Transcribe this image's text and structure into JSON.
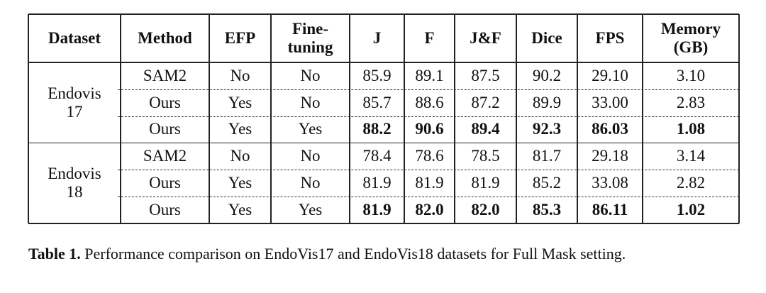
{
  "table": {
    "header": [
      [
        "Dataset"
      ],
      [
        "Method"
      ],
      [
        "EFP"
      ],
      [
        "Fine-",
        "tuning"
      ],
      [
        "J"
      ],
      [
        "F"
      ],
      [
        "J&F"
      ],
      [
        "Dice"
      ],
      [
        "FPS"
      ],
      [
        "Memory",
        "(GB)"
      ]
    ],
    "groups": [
      {
        "dataset": [
          "Endovis",
          "17"
        ],
        "best_row": 2,
        "rows": [
          [
            "SAM2",
            "No",
            "No",
            "85.9",
            "89.1",
            "87.5",
            "90.2",
            "29.10",
            "3.10"
          ],
          [
            "Ours",
            "Yes",
            "No",
            "85.7",
            "88.6",
            "87.2",
            "89.9",
            "33.00",
            "2.83"
          ],
          [
            "Ours",
            "Yes",
            "Yes",
            "88.2",
            "90.6",
            "89.4",
            "92.3",
            "86.03",
            "1.08"
          ]
        ]
      },
      {
        "dataset": [
          "Endovis",
          "18"
        ],
        "best_row": 2,
        "rows": [
          [
            "SAM2",
            "No",
            "No",
            "78.4",
            "78.6",
            "78.5",
            "81.7",
            "29.18",
            "3.14"
          ],
          [
            "Ours",
            "Yes",
            "No",
            "81.9",
            "81.9",
            "81.9",
            "85.2",
            "33.08",
            "2.82"
          ],
          [
            "Ours",
            "Yes",
            "Yes",
            "81.9",
            "82.0",
            "82.0",
            "85.3",
            "86.11",
            "1.02"
          ]
        ]
      }
    ]
  },
  "caption": {
    "label": "Table 1.",
    "text": "Performance comparison on EndoVis17 and EndoVis18 datasets for Full Mask setting."
  }
}
